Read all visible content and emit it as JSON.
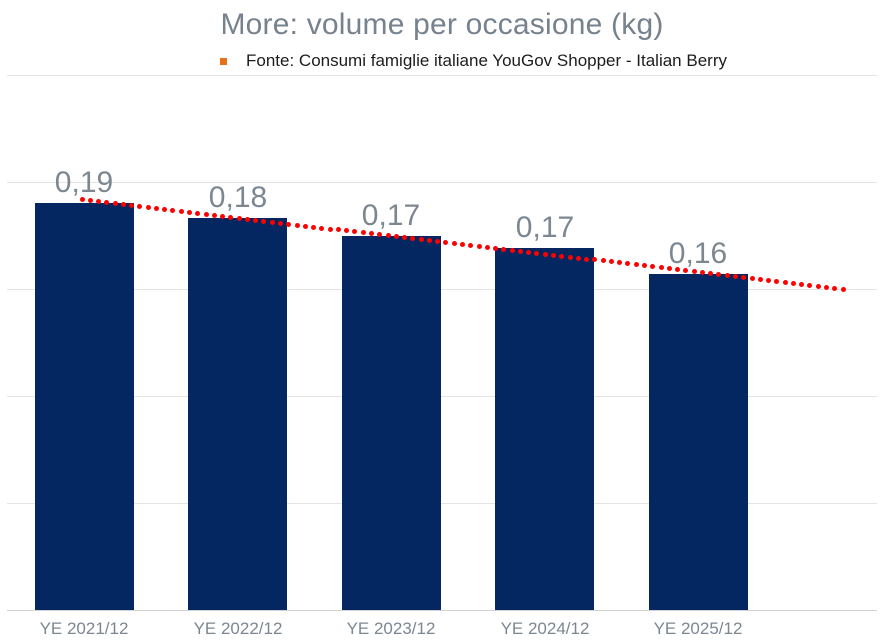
{
  "title": "More: volume per occasione (kg)",
  "subtitle": {
    "bullet_icon": "orange-square-bullet",
    "text": "Fonte: Consumi famiglie italiane YouGov Shopper - Italian Berry"
  },
  "colors": {
    "bar": "#042661",
    "trendline": "#ff0000",
    "title_text": "#76828e",
    "label_text": "#7c8791",
    "subtitle_bullet": "#e8701a",
    "gridline": "#e4e4e4",
    "axisline": "#d3d3d3",
    "background": "#ffffff"
  },
  "chart_data": {
    "type": "bar",
    "title": "More: volume per occasione (kg)",
    "subtitle": "Fonte: Consumi famiglie italiane YouGov Shopper - Italian Berry",
    "categories": [
      "YE 2021/12",
      "YE 2022/12",
      "YE 2023/12",
      "YE 2024/12",
      "YE 2025/12"
    ],
    "values": [
      0.19,
      0.183,
      0.175,
      0.169,
      0.157
    ],
    "data_labels": [
      "0,19",
      "0,18",
      "0,17",
      "0,17",
      "0,16"
    ],
    "xlabel": "",
    "ylabel": "",
    "ylim": [
      0,
      0.25
    ],
    "gridline_step": 0.05,
    "grid": true,
    "y_axis_tick_labels_visible": false,
    "legend": "none",
    "trendline": {
      "type": "linear",
      "style": "dotted",
      "color": "#ff0000",
      "start_value": 0.1916,
      "end_value": 0.15,
      "extends_beyond_last_bar": true
    }
  }
}
